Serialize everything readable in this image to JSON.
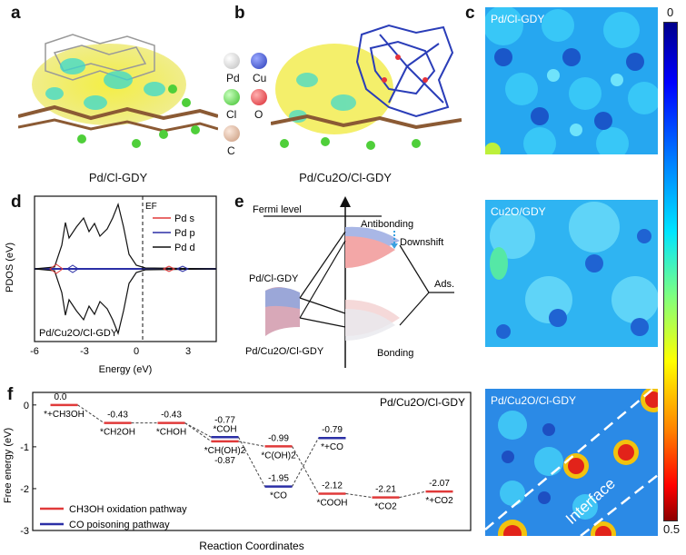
{
  "panels": {
    "a": {
      "letter": "a",
      "caption": "Pd/Cl-GDY"
    },
    "b": {
      "letter": "b",
      "caption": "Pd/Cu2O/Cl-GDY",
      "legend": [
        {
          "symbol": "Pd",
          "color": "#e6e6e6"
        },
        {
          "symbol": "Cu",
          "color": "#4a5fcf"
        },
        {
          "symbol": "Cl",
          "color": "#5ad34a"
        },
        {
          "symbol": "O",
          "color": "#e5333a"
        },
        {
          "symbol": "C",
          "color": "#d7b59e"
        }
      ]
    },
    "c": {
      "letter": "c",
      "maps": [
        "Pd/Cl-GDY",
        "Cu2O/GDY",
        "Pd/Cu2O/Cl-GDY"
      ],
      "interface_label": "Interface",
      "colorbar": {
        "top": "0",
        "bottom": "0.5"
      }
    },
    "d": {
      "letter": "d",
      "ylabel": "PDOS (eV)",
      "xlabel": "Energy (eV)",
      "xticks": [
        "-6",
        "-3",
        "0",
        "3"
      ],
      "ef_label": "EF",
      "sample": "Pd/Cu2O/Cl-GDY",
      "legend": [
        {
          "name": "Pd s",
          "color": "#e03a3a"
        },
        {
          "name": "Pd p",
          "color": "#2b2fa6"
        },
        {
          "name": "Pd d",
          "color": "#111111"
        }
      ]
    },
    "e": {
      "letter": "e",
      "fermi": "Fermi level",
      "antibonding": "Antibonding",
      "downshift": "Downshift",
      "ads": "Ads.",
      "bonding": "Bonding",
      "left_top": "Pd/Cl-GDY",
      "left_bottom": "Pd/Cu2O/Cl-GDY"
    },
    "f": {
      "letter": "f"
    }
  },
  "chart_data": {
    "type": "line",
    "title": "Pd/Cu2O/Cl-GDY",
    "xlabel": "Reaction Coordinates",
    "ylabel": "Free energy (eV)",
    "ylim": [
      -3,
      0.3
    ],
    "yticks": [
      "0",
      "-1",
      "-2",
      "-3"
    ],
    "series": [
      {
        "name": "CH3OH oxidation pathway",
        "color": "#e03a3a",
        "steps": [
          {
            "label": "*+CH3OH",
            "value": 0.0,
            "value_text": "0.0"
          },
          {
            "label": "*CH2OH",
            "value": -0.43,
            "value_text": "-0.43"
          },
          {
            "label": "*CHOH",
            "value": -0.43,
            "value_text": "-0.43"
          },
          {
            "label": "*CH(OH)2",
            "value": -0.87,
            "value_text": "-0.87"
          },
          {
            "label": "*C(OH)2",
            "value": -0.99,
            "value_text": "-0.99"
          },
          {
            "label": "*COOH",
            "value": -2.12,
            "value_text": "-2.12"
          },
          {
            "label": "*CO2",
            "value": -2.21,
            "value_text": "-2.21"
          },
          {
            "label": "*+CO2",
            "value": -2.07,
            "value_text": "-2.07"
          }
        ]
      },
      {
        "name": "CO poisoning pathway",
        "color": "#2b2fa6",
        "steps": [
          {
            "label": "*COH",
            "value": -0.77,
            "value_text": "-0.77"
          },
          {
            "label": "*CO",
            "value": -1.95,
            "value_text": "-1.95"
          },
          {
            "label": "*+CO",
            "value": -0.79,
            "value_text": "-0.79"
          }
        ]
      }
    ]
  }
}
